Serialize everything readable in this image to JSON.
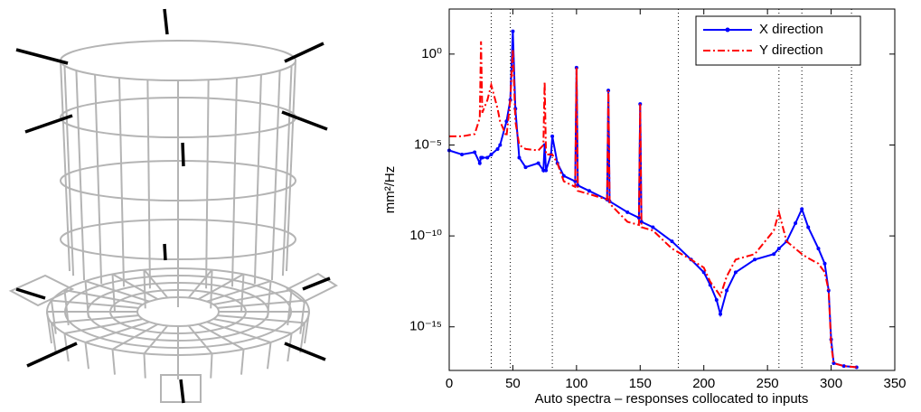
{
  "chart_data": {
    "type": "line",
    "xlabel": "Auto spectra – responses collocated to inputs",
    "ylabel": "mm²/Hz",
    "yscale": "log",
    "legend": "upper right",
    "xlim": [
      0,
      350
    ],
    "xticks": [
      0,
      50,
      100,
      150,
      200,
      250,
      300,
      350
    ],
    "ylim": [
      4e-18,
      300
    ],
    "yticks": [
      {
        "value": 1,
        "label": "10⁰"
      },
      {
        "value": 1e-05,
        "label": "10⁻⁵"
      },
      {
        "value": 1e-10,
        "label": "10⁻¹⁰"
      },
      {
        "value": 1e-15,
        "label": "10⁻¹⁵"
      }
    ],
    "vlines": [
      33,
      48,
      81,
      180,
      259,
      277,
      316
    ],
    "x": [
      0,
      10,
      20,
      24,
      25,
      26,
      30,
      33,
      38,
      40,
      45,
      48,
      50,
      52,
      55,
      60,
      70,
      74,
      75,
      76,
      80,
      81,
      85,
      90,
      99,
      100,
      101,
      110,
      124,
      125,
      126,
      140,
      149,
      150,
      151,
      160,
      175,
      190,
      200,
      205,
      210,
      213,
      218,
      225,
      240,
      255,
      259,
      265,
      272,
      277,
      282,
      290,
      295,
      298,
      300,
      302,
      310,
      320
    ],
    "series": [
      {
        "name": "X direction",
        "color": "#0000ff",
        "linestyle": "solid",
        "marker": "dot",
        "values": [
          5e-06,
          3e-06,
          4e-06,
          1e-06,
          2e-06,
          2e-06,
          2e-06,
          3e-06,
          6e-06,
          1e-05,
          0.0002,
          0.003,
          18,
          0.001,
          2e-06,
          6e-07,
          1e-06,
          4e-07,
          1e-05,
          4e-07,
          3e-06,
          3e-05,
          1e-06,
          2e-07,
          1e-07,
          0.18,
          6e-08,
          3e-08,
          1e-08,
          0.01,
          8e-09,
          2e-09,
          1e-09,
          0.0018,
          6e-10,
          3e-10,
          5e-11,
          5e-12,
          1e-12,
          2e-13,
          3e-14,
          5e-15,
          1e-13,
          1e-12,
          5e-12,
          1e-11,
          2e-11,
          5e-11,
          5e-10,
          3e-09,
          3e-10,
          2e-11,
          3e-12,
          1e-13,
          2e-16,
          1e-17,
          7e-18,
          6e-18
        ]
      },
      {
        "name": "Y direction",
        "color": "#ff0000",
        "linestyle": "dashdot",
        "values": [
          3e-05,
          3e-05,
          4e-05,
          0.0003,
          5,
          0.0006,
          0.003,
          0.02,
          0.001,
          0.0002,
          3e-05,
          0.003,
          1.8,
          0.0002,
          1e-05,
          6e-06,
          5e-06,
          1e-05,
          0.03,
          3e-06,
          3e-06,
          3e-06,
          1e-06,
          1e-07,
          5e-08,
          0.18,
          3e-08,
          2e-08,
          1e-08,
          0.01,
          6e-09,
          6e-10,
          4e-10,
          0.0018,
          3e-10,
          2e-10,
          2e-11,
          5e-12,
          1.8e-12,
          3e-13,
          1e-13,
          5e-14,
          6e-13,
          5e-12,
          1e-11,
          2e-10,
          2e-09,
          5e-11,
          2e-11,
          1e-11,
          6e-12,
          3e-12,
          1e-12,
          1e-13,
          1e-16,
          1e-17,
          7e-18,
          6e-18
        ]
      }
    ]
  }
}
